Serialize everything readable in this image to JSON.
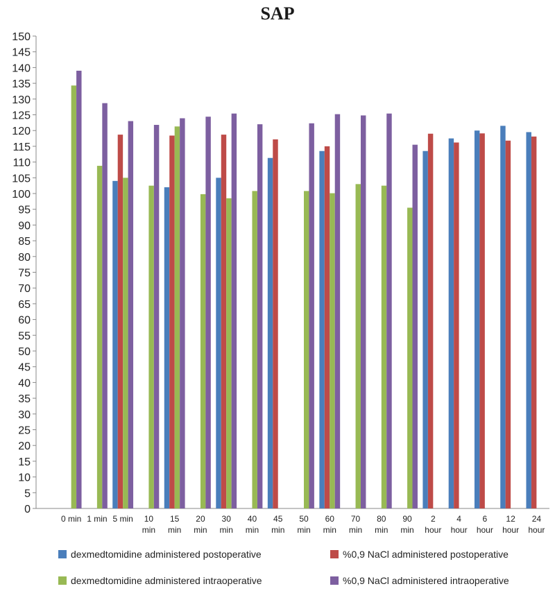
{
  "chart_data": {
    "type": "bar",
    "title": "SAP",
    "xlabel": "",
    "ylabel": "",
    "ylim": [
      0,
      150
    ],
    "ytick_step": 5,
    "grid": false,
    "legend_placement": "bottom",
    "categories": [
      [
        "0 min"
      ],
      [
        "1 min"
      ],
      [
        "5 min"
      ],
      [
        "10",
        "min"
      ],
      [
        "15",
        "min"
      ],
      [
        "20",
        "min"
      ],
      [
        "30",
        "min"
      ],
      [
        "40",
        "min"
      ],
      [
        "45",
        "min"
      ],
      [
        "50",
        "min"
      ],
      [
        "60",
        "min"
      ],
      [
        "70",
        "min"
      ],
      [
        "80",
        "min"
      ],
      [
        "90",
        "min"
      ],
      [
        "2",
        "hour"
      ],
      [
        "4",
        "hour"
      ],
      [
        "6",
        "hour"
      ],
      [
        "12",
        "hour"
      ],
      [
        "24",
        "hour"
      ]
    ],
    "series": [
      {
        "name": "dexmedtomidine administered postoperative",
        "color": "#4a7ebb",
        "values": [
          null,
          null,
          104,
          null,
          102,
          null,
          105,
          null,
          111.3,
          null,
          113.5,
          null,
          null,
          null,
          113.5,
          117.5,
          120,
          121.5,
          119.5
        ]
      },
      {
        "name": "%0,9 NaCl administered postoperative",
        "color": "#be4b48",
        "values": [
          null,
          null,
          118.7,
          null,
          118.4,
          null,
          118.7,
          null,
          117.2,
          null,
          115,
          null,
          null,
          null,
          119,
          116.2,
          119.1,
          116.8,
          118.1
        ]
      },
      {
        "name": "dexmedtomidine administered intraoperative",
        "color": "#98b954",
        "values": [
          134.3,
          108.8,
          105,
          102.5,
          121.3,
          99.8,
          98.5,
          100.8,
          null,
          100.8,
          100.1,
          103,
          102.5,
          95.5,
          null,
          null,
          null,
          null,
          null
        ]
      },
      {
        "name": "%0,9 NaCl administered intraoperative",
        "color": "#7d5fa0",
        "values": [
          139,
          128.7,
          123,
          121.8,
          123.9,
          124.4,
          125.4,
          122,
          null,
          122.3,
          125.2,
          124.8,
          125.4,
          115.5,
          null,
          null,
          null,
          null,
          null
        ]
      }
    ]
  }
}
